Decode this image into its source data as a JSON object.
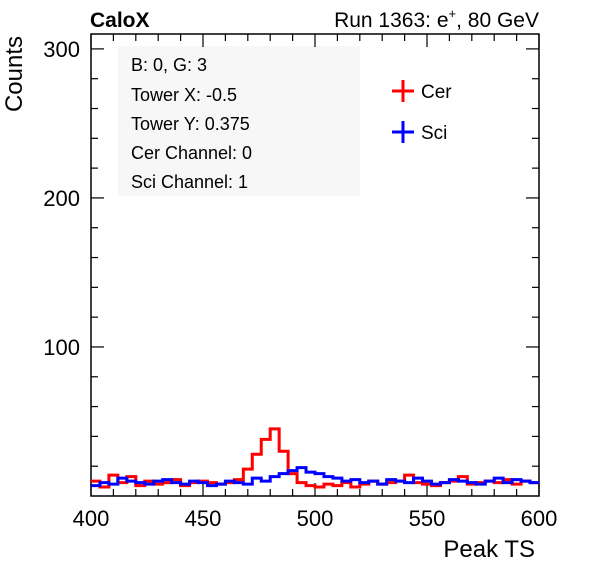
{
  "header": {
    "left": "CaloX",
    "right_prefix": "Run 1363: e",
    "right_sup": "+",
    "right_suffix": ", 80 GeV"
  },
  "info_box": {
    "lines": [
      "B: 0, G: 3",
      "Tower X: -0.5",
      "Tower Y: 0.375",
      "Cer Channel: 0",
      "Sci Channel: 1"
    ]
  },
  "colors": {
    "cer": "#ff0000",
    "sci": "#0000ff",
    "info_box_bg": "#f7f7f7"
  },
  "chart_data": {
    "type": "histogram",
    "xlabel": "Peak TS",
    "ylabel": "Counts",
    "xlim": [
      400,
      600
    ],
    "ylim": [
      0,
      310
    ],
    "x_ticks": [
      400,
      450,
      500,
      550,
      600
    ],
    "y_ticks": [
      100,
      200,
      300
    ],
    "legend_position": "top-right",
    "grid": false,
    "series": [
      {
        "name": "Cer",
        "color": "#ff0000",
        "bins": [
          [
            400,
            10
          ],
          [
            404,
            6
          ],
          [
            408,
            14
          ],
          [
            412,
            9
          ],
          [
            416,
            13
          ],
          [
            420,
            7
          ],
          [
            424,
            10
          ],
          [
            428,
            8
          ],
          [
            432,
            9
          ],
          [
            436,
            11
          ],
          [
            440,
            7
          ],
          [
            444,
            9
          ],
          [
            448,
            10
          ],
          [
            452,
            9
          ],
          [
            456,
            8
          ],
          [
            460,
            9
          ],
          [
            464,
            11
          ],
          [
            468,
            18
          ],
          [
            472,
            28
          ],
          [
            476,
            38
          ],
          [
            480,
            45
          ],
          [
            484,
            30
          ],
          [
            488,
            15
          ],
          [
            492,
            9
          ],
          [
            496,
            7
          ],
          [
            500,
            6
          ],
          [
            504,
            8
          ],
          [
            508,
            7
          ],
          [
            512,
            9
          ],
          [
            516,
            6
          ],
          [
            520,
            8
          ],
          [
            524,
            10
          ],
          [
            528,
            8
          ],
          [
            532,
            9
          ],
          [
            536,
            10
          ],
          [
            540,
            14
          ],
          [
            544,
            9
          ],
          [
            548,
            8
          ],
          [
            552,
            7
          ],
          [
            556,
            9
          ],
          [
            560,
            10
          ],
          [
            564,
            13
          ],
          [
            568,
            8
          ],
          [
            572,
            9
          ],
          [
            576,
            10
          ],
          [
            580,
            9
          ],
          [
            584,
            11
          ],
          [
            588,
            8
          ],
          [
            592,
            10
          ],
          [
            596,
            9
          ]
        ]
      },
      {
        "name": "Sci",
        "color": "#0000ff",
        "bins": [
          [
            400,
            7
          ],
          [
            404,
            9
          ],
          [
            408,
            8
          ],
          [
            412,
            12
          ],
          [
            416,
            10
          ],
          [
            420,
            9
          ],
          [
            424,
            8
          ],
          [
            428,
            10
          ],
          [
            432,
            11
          ],
          [
            436,
            9
          ],
          [
            440,
            8
          ],
          [
            444,
            10
          ],
          [
            448,
            9
          ],
          [
            452,
            7
          ],
          [
            456,
            8
          ],
          [
            460,
            10
          ],
          [
            464,
            9
          ],
          [
            468,
            8
          ],
          [
            472,
            12
          ],
          [
            476,
            10
          ],
          [
            480,
            13
          ],
          [
            484,
            15
          ],
          [
            488,
            17
          ],
          [
            492,
            19
          ],
          [
            496,
            16
          ],
          [
            500,
            15
          ],
          [
            504,
            13
          ],
          [
            508,
            12
          ],
          [
            512,
            10
          ],
          [
            516,
            11
          ],
          [
            520,
            9
          ],
          [
            524,
            10
          ],
          [
            528,
            8
          ],
          [
            532,
            11
          ],
          [
            536,
            10
          ],
          [
            540,
            9
          ],
          [
            544,
            12
          ],
          [
            548,
            10
          ],
          [
            552,
            8
          ],
          [
            556,
            9
          ],
          [
            560,
            11
          ],
          [
            564,
            10
          ],
          [
            568,
            9
          ],
          [
            572,
            8
          ],
          [
            576,
            10
          ],
          [
            580,
            12
          ],
          [
            584,
            9
          ],
          [
            588,
            11
          ],
          [
            592,
            10
          ],
          [
            596,
            9
          ]
        ]
      }
    ]
  }
}
